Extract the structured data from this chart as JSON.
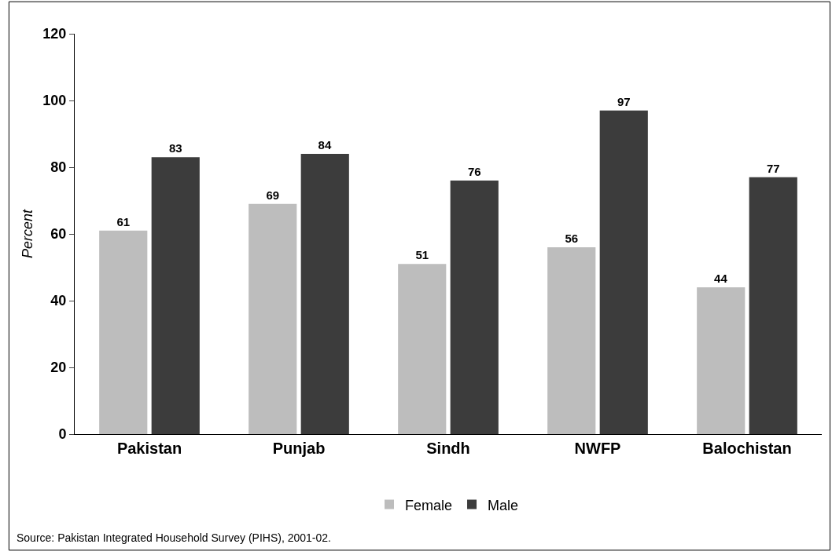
{
  "chart_data": {
    "type": "bar",
    "ylabel": "Percent",
    "categories": [
      "Pakistan",
      "Punjab",
      "Sindh",
      "NWFP",
      "Balochistan"
    ],
    "series": [
      {
        "name": "Female",
        "color": "#bdbdbd",
        "values": [
          61,
          69,
          51,
          56,
          44
        ]
      },
      {
        "name": "Male",
        "color": "#3c3c3c",
        "values": [
          83,
          84,
          76,
          97,
          77
        ]
      }
    ],
    "ylim": [
      0,
      120
    ],
    "yticks": [
      0,
      20,
      40,
      60,
      80,
      100,
      120
    ],
    "data_labels": true,
    "legend": "bottom",
    "annotations": [
      "Source: Pakistan Integrated Household Survey (PIHS), 2001-02."
    ]
  }
}
